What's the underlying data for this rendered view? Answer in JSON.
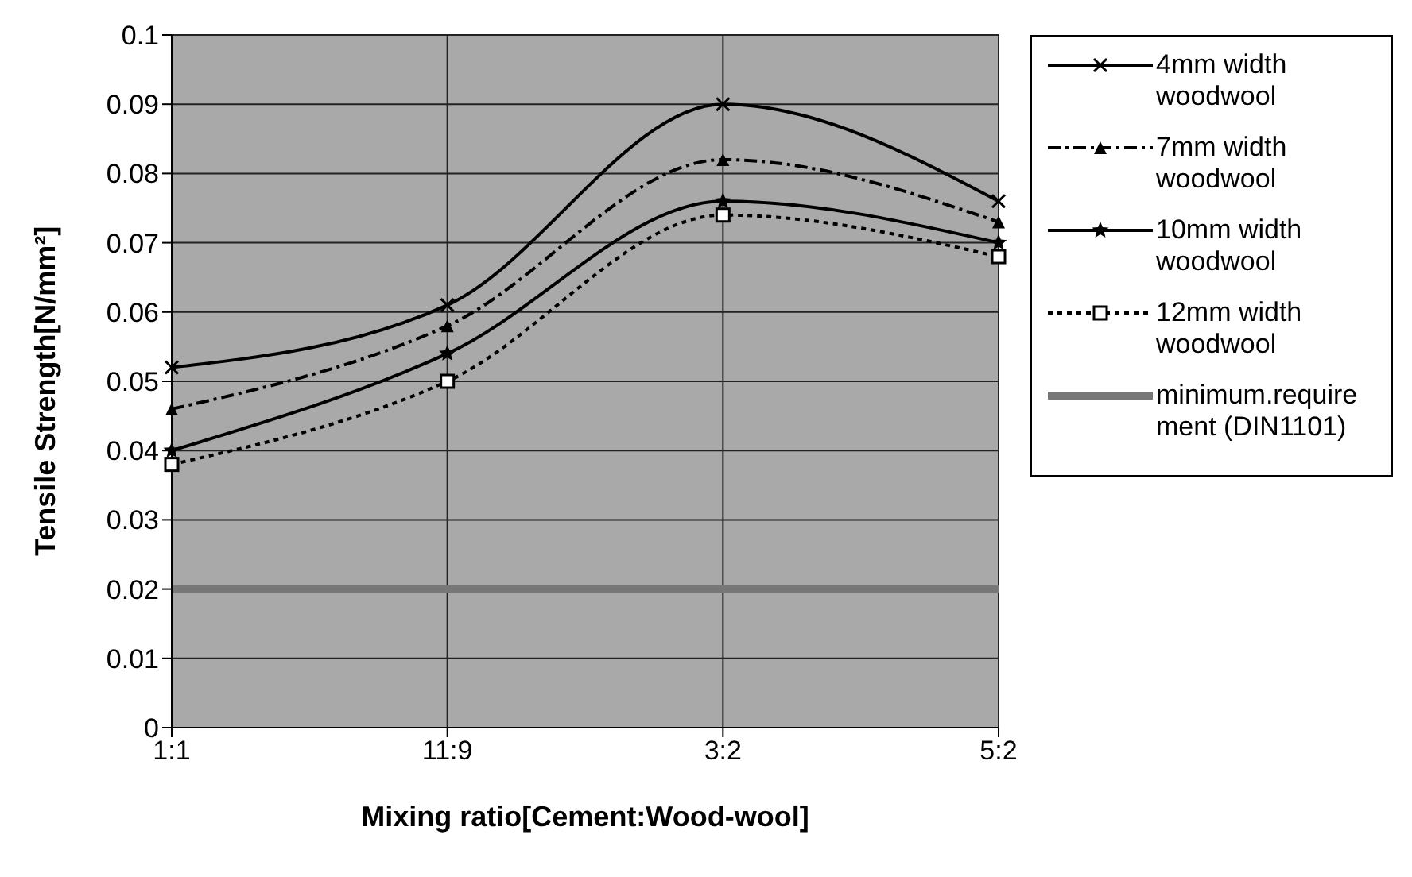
{
  "chart_data": {
    "type": "line",
    "xlabel": "Mixing ratio[Cement:Wood-wool]",
    "ylabel": "Tensile Strength[N/mm²]",
    "categories": [
      "1:1",
      "11:9",
      "3:2",
      "5:2"
    ],
    "series": [
      {
        "name": "4mm width woodwool",
        "color": "#000000",
        "values": [
          0.052,
          0.061,
          0.09,
          0.076
        ],
        "marker": "cross",
        "line_style": "solid"
      },
      {
        "name": "7mm width woodwool",
        "color": "#000000",
        "values": [
          0.046,
          0.058,
          0.082,
          0.073
        ],
        "marker": "triangle",
        "line_style": "dashed"
      },
      {
        "name": "10mm width woodwool",
        "color": "#000000",
        "values": [
          0.04,
          0.054,
          0.076,
          0.07
        ],
        "marker": "star",
        "line_style": "solid"
      },
      {
        "name": "12mm width woodwool",
        "color": "#000000",
        "values": [
          0.038,
          0.05,
          0.074,
          0.068
        ],
        "marker": "square",
        "line_style": "dotted"
      },
      {
        "name": "minimum.requirement (DIN1101)",
        "color": "#777777",
        "values": [
          0.02,
          0.02,
          0.02,
          0.02
        ],
        "marker": "none",
        "line_style": "solid"
      }
    ],
    "ylim": [
      0,
      0.1
    ],
    "yticks": [
      0,
      0.01,
      0.02,
      0.03,
      0.04,
      0.05,
      0.06,
      0.07,
      0.08,
      0.09,
      0.1
    ],
    "grid": true,
    "legend": "right"
  }
}
